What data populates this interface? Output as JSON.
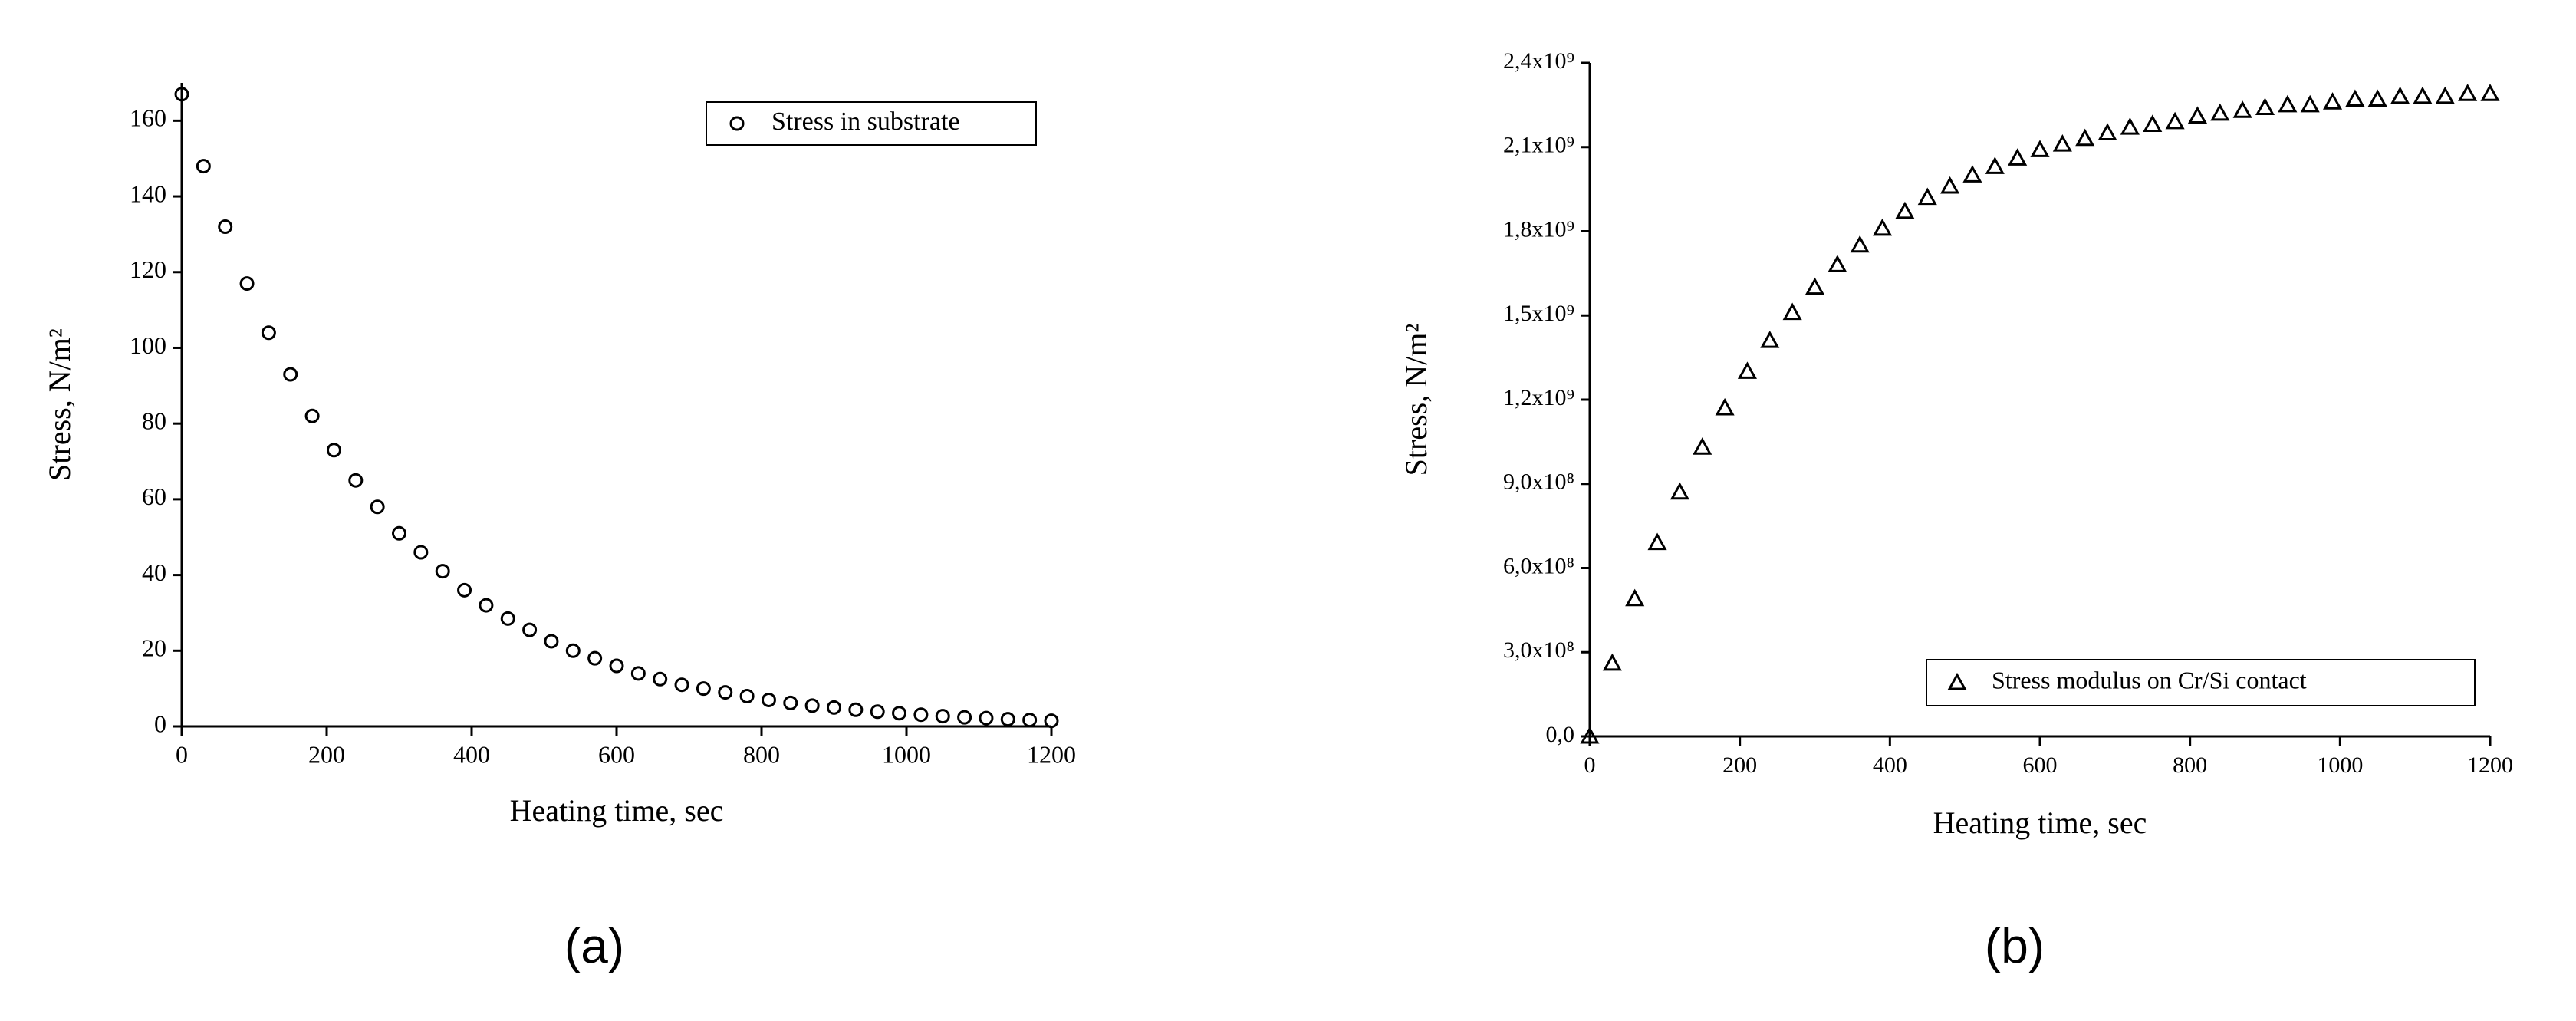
{
  "chart_data": [
    {
      "type": "scatter",
      "panel_label": "(a)",
      "x_label": "Heating time, sec",
      "y_label": "Stress, N/m²",
      "x": [
        0,
        30,
        60,
        90,
        120,
        150,
        180,
        210,
        240,
        270,
        300,
        330,
        360,
        390,
        420,
        450,
        480,
        510,
        540,
        570,
        600,
        630,
        660,
        690,
        720,
        750,
        780,
        810,
        840,
        870,
        900,
        930,
        960,
        990,
        1020,
        1050,
        1080,
        1110,
        1140,
        1170,
        1200
      ],
      "series": [
        {
          "name": "Stress in substrate",
          "color": "#000000",
          "marker": "circle",
          "values": [
            167,
            148,
            132,
            117,
            104,
            93,
            82,
            73,
            65,
            58,
            51,
            46,
            41,
            36,
            32,
            28.5,
            25.5,
            22.5,
            20,
            18,
            16,
            14,
            12.5,
            11,
            10,
            9,
            8,
            7,
            6.2,
            5.5,
            5,
            4.4,
            3.9,
            3.5,
            3.1,
            2.7,
            2.4,
            2.2,
            1.9,
            1.7,
            1.5
          ]
        }
      ],
      "xlim": [
        0,
        1200
      ],
      "xticks": [
        0,
        200,
        400,
        600,
        800,
        1000,
        1200
      ],
      "ylim": [
        0,
        170
      ],
      "yticks": [
        0,
        20,
        40,
        60,
        80,
        100,
        120,
        140,
        160
      ],
      "grid": false,
      "legend": "upper right"
    },
    {
      "type": "scatter",
      "panel_label": "(b)",
      "x_label": "Heating time, sec",
      "y_label": "Stress, N/m²",
      "x": [
        0,
        30,
        60,
        90,
        120,
        150,
        180,
        210,
        240,
        270,
        300,
        330,
        360,
        390,
        420,
        450,
        480,
        510,
        540,
        570,
        600,
        630,
        660,
        690,
        720,
        750,
        780,
        810,
        840,
        870,
        900,
        930,
        960,
        990,
        1020,
        1050,
        1080,
        1110,
        1140,
        1170,
        1200
      ],
      "series": [
        {
          "name": "Stress modulus on Cr/Si contact",
          "color": "#000000",
          "marker": "triangle",
          "values": [
            0,
            260000000,
            490000000,
            690000000,
            870000000,
            1030000000,
            1170000000,
            1300000000,
            1410000000,
            1510000000,
            1600000000,
            1680000000,
            1750000000,
            1810000000,
            1870000000,
            1920000000,
            1960000000,
            2000000000,
            2030000000,
            2060000000,
            2090000000,
            2110000000,
            2130000000,
            2150000000,
            2170000000,
            2180000000,
            2190000000,
            2210000000,
            2220000000,
            2230000000,
            2240000000,
            2250000000,
            2250000000,
            2260000000,
            2270000000,
            2270000000,
            2280000000,
            2280000000,
            2280000000,
            2290000000,
            2290000000
          ]
        }
      ],
      "xlim": [
        0,
        1200
      ],
      "xticks": [
        0,
        200,
        400,
        600,
        800,
        1000,
        1200
      ],
      "ylim": [
        0,
        2400000000
      ],
      "yticks": [
        {
          "value": 0,
          "label": "0,0"
        },
        {
          "value": 300000000,
          "label": "3,0x10⁸"
        },
        {
          "value": 600000000,
          "label": "6,0x10⁸"
        },
        {
          "value": 900000000,
          "label": "9,0x10⁸"
        },
        {
          "value": 1200000000,
          "label": "1,2x10⁹"
        },
        {
          "value": 1500000000,
          "label": "1,5x10⁹"
        },
        {
          "value": 1800000000,
          "label": "1,8x10⁹"
        },
        {
          "value": 2100000000,
          "label": "2,1x10⁹"
        },
        {
          "value": 2400000000,
          "label": "2,4x10⁹"
        }
      ],
      "grid": false,
      "legend": "lower right"
    }
  ]
}
